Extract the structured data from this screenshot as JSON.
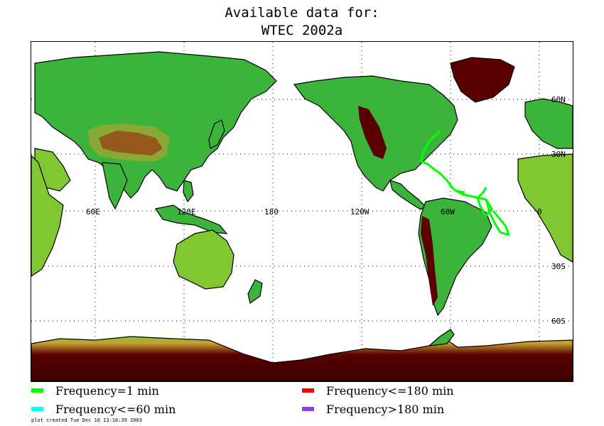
{
  "title": {
    "line1": "Available data for:",
    "line2": "WTEC 2002a"
  },
  "map": {
    "longitude_labels": [
      "60E",
      "120E",
      "180",
      "120W",
      "60W",
      "0"
    ],
    "latitude_labels": [
      "60N",
      "30N",
      "30S",
      "60S"
    ],
    "track_color": "#00ff00",
    "terrain_colors": {
      "lowland": "#3cb43c",
      "mid": "#7fc832",
      "high": "#c8a032",
      "peak": "#5a0000",
      "ice": "#3c0000",
      "ocean": "#ffffff"
    }
  },
  "legend": [
    {
      "label": "Frequency=1 min",
      "color": "#00ff00"
    },
    {
      "label": "Frequency<=60 min",
      "color": "#00ffff"
    },
    {
      "label": "Frequency<=180 min",
      "color": "#ff0000"
    },
    {
      "label": "Frequency>180 min",
      "color": "#8c3cff"
    }
  ],
  "footer": "plot created Tue Dec 16 13:16:39 2003"
}
